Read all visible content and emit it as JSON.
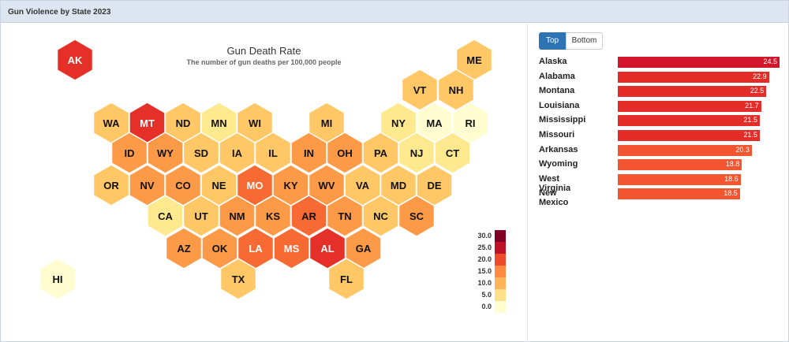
{
  "header": {
    "title": "Gun Violence by State 2023"
  },
  "toggle": {
    "top_label": "Top",
    "bottom_label": "Bottom",
    "selected": "Top"
  },
  "colors": {
    "scale": [
      "#fffdd0",
      "#ffe98f",
      "#ffc766",
      "#fd9a47",
      "#f86a33",
      "#e5302a",
      "#c01226",
      "#800026"
    ],
    "bar": "#e32b28",
    "bar_light": "#f25a30"
  },
  "chart_data": [
    {
      "type": "heatmap",
      "title": "Gun Death Rate",
      "subtitle": "The number of gun deaths per 100,000 people",
      "legend": {
        "ticks": [
          "30.0",
          "25.0",
          "20.0",
          "15.0",
          "10.0",
          "5.0",
          "0.0"
        ],
        "placement": "bottom-right"
      },
      "states": [
        {
          "abbr": "AK",
          "rate": 24.5,
          "col": 0,
          "row": 0
        },
        {
          "abbr": "ME",
          "rate": 13.0,
          "col": 10,
          "row": 0
        },
        {
          "abbr": "VT",
          "rate": 13.0,
          "col": 9,
          "row": 1
        },
        {
          "abbr": "NH",
          "rate": 10.5,
          "col": 10,
          "row": 1
        },
        {
          "abbr": "WA",
          "rate": 12.0,
          "col": 0,
          "row": 2
        },
        {
          "abbr": "MT",
          "rate": 22.5,
          "col": 1,
          "row": 2
        },
        {
          "abbr": "ND",
          "rate": 14.0,
          "col": 2,
          "row": 2
        },
        {
          "abbr": "MN",
          "rate": 9.5,
          "col": 3,
          "row": 2
        },
        {
          "abbr": "WI",
          "rate": 11.5,
          "col": 4,
          "row": 2
        },
        {
          "abbr": "MI",
          "rate": 14.5,
          "col": 6,
          "row": 2
        },
        {
          "abbr": "NY",
          "rate": 5.0,
          "col": 8,
          "row": 2
        },
        {
          "abbr": "MA",
          "rate": 3.5,
          "col": 9,
          "row": 2
        },
        {
          "abbr": "RI",
          "rate": 4.5,
          "col": 10,
          "row": 2
        },
        {
          "abbr": "ID",
          "rate": 17.0,
          "col": 0,
          "row": 3
        },
        {
          "abbr": "WY",
          "rate": 18.8,
          "col": 1,
          "row": 3
        },
        {
          "abbr": "SD",
          "rate": 13.5,
          "col": 2,
          "row": 3
        },
        {
          "abbr": "IA",
          "rate": 11.0,
          "col": 3,
          "row": 3
        },
        {
          "abbr": "IL",
          "rate": 14.0,
          "col": 4,
          "row": 3
        },
        {
          "abbr": "IN",
          "rate": 17.5,
          "col": 5,
          "row": 3
        },
        {
          "abbr": "OH",
          "rate": 15.0,
          "col": 6,
          "row": 3
        },
        {
          "abbr": "PA",
          "rate": 13.0,
          "col": 7,
          "row": 3
        },
        {
          "abbr": "NJ",
          "rate": 5.0,
          "col": 8,
          "row": 3
        },
        {
          "abbr": "CT",
          "rate": 6.5,
          "col": 9,
          "row": 3
        },
        {
          "abbr": "OR",
          "rate": 13.5,
          "col": 0,
          "row": 4
        },
        {
          "abbr": "NV",
          "rate": 17.5,
          "col": 1,
          "row": 4
        },
        {
          "abbr": "CO",
          "rate": 16.5,
          "col": 2,
          "row": 4
        },
        {
          "abbr": "NE",
          "rate": 10.0,
          "col": 3,
          "row": 4
        },
        {
          "abbr": "MO",
          "rate": 21.5,
          "col": 4,
          "row": 4
        },
        {
          "abbr": "KY",
          "rate": 18.0,
          "col": 5,
          "row": 4
        },
        {
          "abbr": "WV",
          "rate": 18.6,
          "col": 6,
          "row": 4
        },
        {
          "abbr": "VA",
          "rate": 14.0,
          "col": 7,
          "row": 4
        },
        {
          "abbr": "MD",
          "rate": 12.5,
          "col": 8,
          "row": 4
        },
        {
          "abbr": "DE",
          "rate": 11.5,
          "col": 9,
          "row": 4
        },
        {
          "abbr": "CA",
          "rate": 8.5,
          "col": 1,
          "row": 5
        },
        {
          "abbr": "UT",
          "rate": 14.0,
          "col": 2,
          "row": 5
        },
        {
          "abbr": "NM",
          "rate": 18.5,
          "col": 3,
          "row": 5
        },
        {
          "abbr": "KS",
          "rate": 16.5,
          "col": 4,
          "row": 5
        },
        {
          "abbr": "AR",
          "rate": 20.3,
          "col": 5,
          "row": 5
        },
        {
          "abbr": "TN",
          "rate": 18.5,
          "col": 6,
          "row": 5
        },
        {
          "abbr": "NC",
          "rate": 14.5,
          "col": 7,
          "row": 5
        },
        {
          "abbr": "SC",
          "rate": 17.5,
          "col": 8,
          "row": 5
        },
        {
          "abbr": "AZ",
          "rate": 16.5,
          "col": 2,
          "row": 6
        },
        {
          "abbr": "OK",
          "rate": 17.5,
          "col": 3,
          "row": 6
        },
        {
          "abbr": "LA",
          "rate": 21.7,
          "col": 4,
          "row": 6
        },
        {
          "abbr": "MS",
          "rate": 21.5,
          "col": 5,
          "row": 6
        },
        {
          "abbr": "AL",
          "rate": 22.9,
          "col": 6,
          "row": 6
        },
        {
          "abbr": "GA",
          "rate": 15.5,
          "col": 7,
          "row": 6
        },
        {
          "abbr": "TX",
          "rate": 14.0,
          "col": 3,
          "row": 7
        },
        {
          "abbr": "FL",
          "rate": 13.0,
          "col": 6,
          "row": 7
        },
        {
          "abbr": "HI",
          "rate": 4.5,
          "col": 0,
          "row": 8
        }
      ]
    },
    {
      "type": "bar",
      "categories": [
        "Alaska",
        "Alabama",
        "Montana",
        "Louisiana",
        "Mississippi",
        "Missouri",
        "Arkansas",
        "Wyoming",
        "West Virginia",
        "New Mexico"
      ],
      "values": [
        24.5,
        22.9,
        22.5,
        21.7,
        21.5,
        21.5,
        20.3,
        18.8,
        18.6,
        18.5
      ],
      "value_labels": [
        "24.5",
        "22.9",
        "22.5",
        "21.7",
        "21.5",
        "21.5",
        "20.3",
        "18.8",
        "18.6",
        "18.5"
      ],
      "xlim": [
        0,
        24.5
      ]
    }
  ]
}
